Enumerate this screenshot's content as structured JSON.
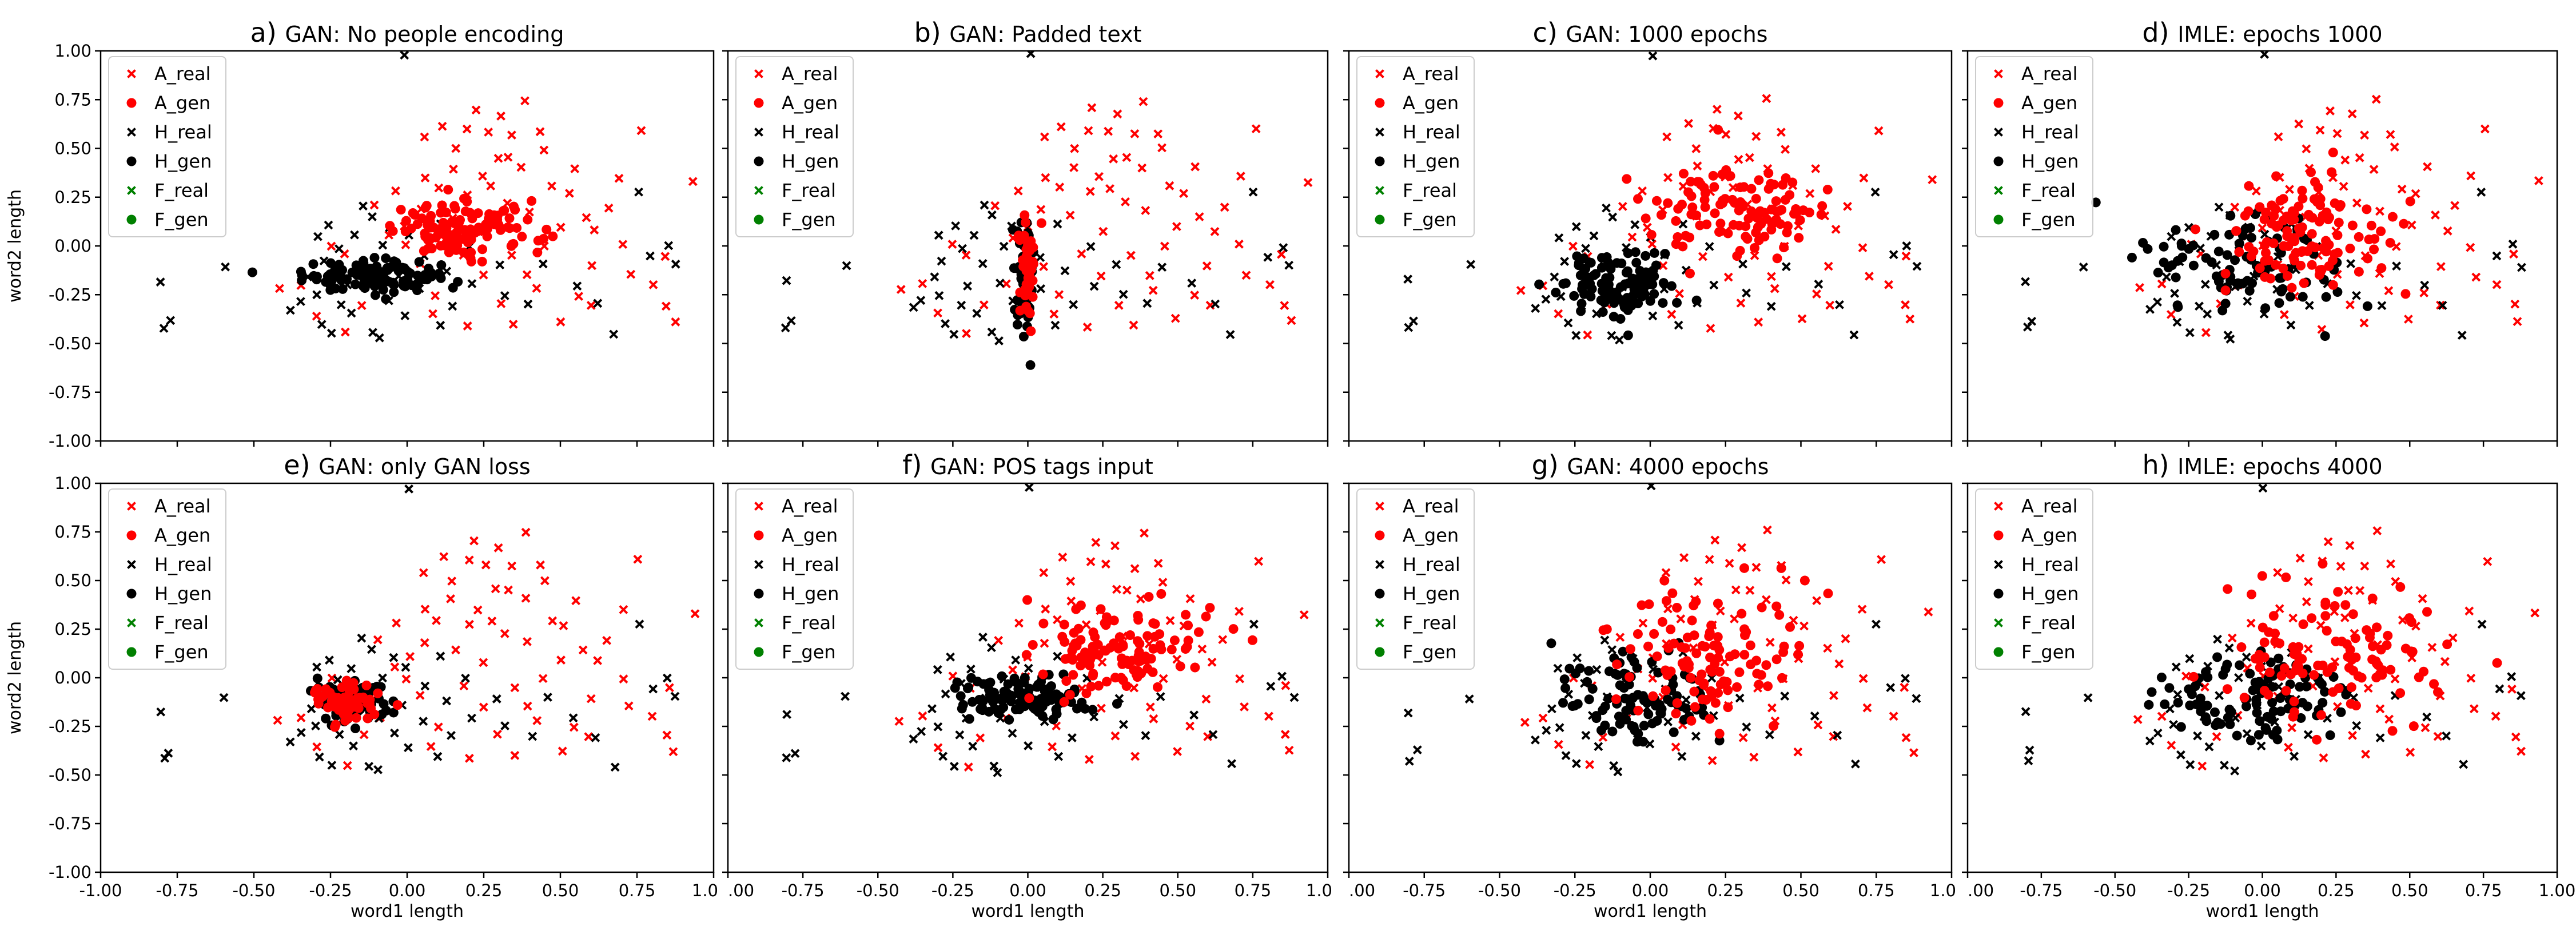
{
  "chart_data": [
    {
      "id": "a",
      "panel_label": "a)",
      "title": "GAN: No people encoding",
      "type": "scatter",
      "xlabel": "",
      "ylabel": "word2 length",
      "xlim": [
        -1.0,
        1.0
      ],
      "ylim": [
        -1.0,
        1.0
      ],
      "legend": [
        "A_real",
        "A_gen",
        "H_real",
        "H_gen",
        "F_real",
        "F_gen"
      ],
      "legend_position": "top-left",
      "series_summary": {
        "A_gen": {
          "center": [
            0.2,
            0.08
          ],
          "spread": [
            0.12,
            0.07
          ],
          "count": 120
        },
        "H_gen": {
          "center": [
            -0.12,
            -0.15
          ],
          "spread": [
            0.11,
            0.04
          ],
          "count": 120
        }
      }
    },
    {
      "id": "b",
      "panel_label": "b)",
      "title": "GAN: Padded text",
      "type": "scatter",
      "xlabel": "",
      "ylabel": "",
      "xlim": [
        -1.0,
        1.0
      ],
      "ylim": [
        -1.0,
        1.0
      ],
      "legend": [
        "A_real",
        "A_gen",
        "H_real",
        "H_gen",
        "F_real",
        "F_gen"
      ],
      "legend_position": "top-left",
      "series_summary": {
        "A_gen": {
          "center": [
            0.0,
            -0.1
          ],
          "spread": [
            0.015,
            0.13
          ],
          "count": 50
        },
        "H_gen": {
          "center": [
            -0.01,
            -0.15
          ],
          "spread": [
            0.015,
            0.13
          ],
          "count": 70
        }
      }
    },
    {
      "id": "c",
      "panel_label": "c)",
      "title": "GAN: 1000 epochs",
      "type": "scatter",
      "xlabel": "",
      "ylabel": "",
      "xlim": [
        -1.0,
        1.0
      ],
      "ylim": [
        -1.0,
        1.0
      ],
      "legend": [
        "A_real",
        "A_gen",
        "H_real",
        "H_gen",
        "F_real",
        "F_gen"
      ],
      "legend_position": "top-left",
      "series_summary": {
        "A_gen": {
          "center": [
            0.3,
            0.18
          ],
          "spread": [
            0.14,
            0.12
          ],
          "count": 110
        },
        "H_gen": {
          "center": [
            -0.1,
            -0.2
          ],
          "spread": [
            0.1,
            0.08
          ],
          "count": 110
        }
      }
    },
    {
      "id": "d",
      "panel_label": "d)",
      "title": "IMLE: epochs 1000",
      "type": "scatter",
      "xlabel": "",
      "ylabel": "",
      "xlim": [
        -1.0,
        1.0
      ],
      "ylim": [
        -1.0,
        1.0
      ],
      "legend": [
        "A_real",
        "A_gen",
        "H_real",
        "H_gen",
        "F_real",
        "F_gen"
      ],
      "legend_position": "top-left",
      "series_summary": {
        "A_gen": {
          "center": [
            0.15,
            0.08
          ],
          "spread": [
            0.16,
            0.15
          ],
          "count": 120
        },
        "H_gen": {
          "center": [
            -0.05,
            -0.1
          ],
          "spread": [
            0.18,
            0.15
          ],
          "count": 90
        }
      }
    },
    {
      "id": "e",
      "panel_label": "e)",
      "title": "GAN: only GAN loss",
      "type": "scatter",
      "xlabel": "word1 length",
      "ylabel": "word2 length",
      "xlim": [
        -1.0,
        1.0
      ],
      "ylim": [
        -1.0,
        1.0
      ],
      "legend": [
        "A_real",
        "A_gen",
        "H_real",
        "H_gen",
        "F_real",
        "F_gen"
      ],
      "legend_position": "top-left",
      "series_summary": {
        "A_gen": {
          "center": [
            -0.2,
            -0.12
          ],
          "spread": [
            0.05,
            0.05
          ],
          "count": 60
        },
        "H_gen": {
          "center": [
            -0.18,
            -0.12
          ],
          "spread": [
            0.05,
            0.05
          ],
          "count": 90
        }
      }
    },
    {
      "id": "f",
      "panel_label": "f)",
      "title": "GAN: POS tags input",
      "type": "scatter",
      "xlabel": "word1 length",
      "ylabel": "",
      "xlim": [
        -1.0,
        1.0
      ],
      "ylim": [
        -1.0,
        1.0
      ],
      "legend": [
        "A_real",
        "A_gen",
        "H_real",
        "H_gen",
        "F_real",
        "F_gen"
      ],
      "legend_position": "top-left",
      "series_summary": {
        "A_gen": {
          "center": [
            0.3,
            0.15
          ],
          "spread": [
            0.15,
            0.12
          ],
          "count": 120
        },
        "H_gen": {
          "center": [
            -0.02,
            -0.1
          ],
          "spread": [
            0.1,
            0.06
          ],
          "count": 110
        }
      }
    },
    {
      "id": "g",
      "panel_label": "g)",
      "title": "GAN: 4000 epochs",
      "type": "scatter",
      "xlabel": "word1 length",
      "ylabel": "",
      "xlim": [
        -1.0,
        1.0
      ],
      "ylim": [
        -1.0,
        1.0
      ],
      "legend": [
        "A_real",
        "A_gen",
        "H_real",
        "H_gen",
        "F_real",
        "F_gen"
      ],
      "legend_position": "top-left",
      "series_summary": {
        "A_gen": {
          "center": [
            0.2,
            0.1
          ],
          "spread": [
            0.15,
            0.18
          ],
          "count": 110
        },
        "H_gen": {
          "center": [
            -0.05,
            -0.1
          ],
          "spread": [
            0.14,
            0.12
          ],
          "count": 100
        }
      }
    },
    {
      "id": "h",
      "panel_label": "h)",
      "title": "IMLE: epochs 4000",
      "type": "scatter",
      "xlabel": "word1 length",
      "ylabel": "",
      "xlim": [
        -1.0,
        1.0
      ],
      "ylim": [
        -1.0,
        1.0
      ],
      "legend": [
        "A_real",
        "A_gen",
        "H_real",
        "H_gen",
        "F_real",
        "F_gen"
      ],
      "legend_position": "top-left",
      "series_summary": {
        "A_gen": {
          "center": [
            0.25,
            0.12
          ],
          "spread": [
            0.18,
            0.18
          ],
          "count": 110
        },
        "H_gen": {
          "center": [
            -0.02,
            -0.1
          ],
          "spread": [
            0.17,
            0.12
          ],
          "count": 100
        }
      }
    }
  ],
  "shared": {
    "x_tick_labels": [
      "-1.00",
      "-0.75",
      "-0.50",
      "-0.25",
      "0.00",
      "0.25",
      "0.50",
      "0.75",
      "1.00"
    ],
    "x_tick_labels_truncated": [
      ".00",
      "-0.75",
      "-0.50",
      "-0.25",
      "0.00",
      "0.25",
      "0.50",
      "0.75",
      "1.0"
    ],
    "y_tick_labels": [
      "1.00",
      "0.75",
      "0.50",
      "0.25",
      "0.00",
      "-0.25",
      "-0.50",
      "-0.75",
      "-1.00"
    ],
    "real_points": [
      [
        0.38,
        0.75
      ],
      [
        0.22,
        0.7
      ],
      [
        0.3,
        0.67
      ],
      [
        0.12,
        0.62
      ],
      [
        0.2,
        0.6
      ],
      [
        0.43,
        0.58
      ],
      [
        0.35,
        0.57
      ],
      [
        0.26,
        0.58
      ],
      [
        0.76,
        0.6
      ],
      [
        0.05,
        0.55
      ],
      [
        0.45,
        0.5
      ],
      [
        0.33,
        0.45
      ],
      [
        0.29,
        0.45
      ],
      [
        0.15,
        0.4
      ],
      [
        0.24,
        0.35
      ],
      [
        0.06,
        0.35
      ],
      [
        0.38,
        0.4
      ],
      [
        0.55,
        0.4
      ],
      [
        0.93,
        0.33
      ],
      [
        0.1,
        0.3
      ],
      [
        0.28,
        0.3
      ],
      [
        -0.03,
        0.28
      ],
      [
        0.2,
        0.27
      ],
      [
        0.52,
        0.26
      ],
      [
        0.32,
        0.22
      ],
      [
        0.4,
        0.18
      ],
      [
        -0.1,
        0.2
      ],
      [
        0.05,
        0.18
      ],
      [
        0.15,
        0.15
      ],
      [
        0.62,
        0.08
      ],
      [
        0.5,
        0.1
      ],
      [
        0.25,
        0.08
      ],
      [
        0.0,
        0.1
      ],
      [
        -0.05,
        0.05
      ],
      [
        0.7,
        0.0
      ],
      [
        0.45,
        0.0
      ],
      [
        0.85,
        -0.05
      ],
      [
        0.6,
        -0.1
      ],
      [
        0.35,
        -0.05
      ],
      [
        0.18,
        -0.05
      ],
      [
        -0.2,
        -0.05
      ],
      [
        0.8,
        -0.2
      ],
      [
        0.55,
        -0.25
      ],
      [
        0.42,
        -0.22
      ],
      [
        0.3,
        -0.3
      ],
      [
        0.1,
        -0.25
      ],
      [
        -0.15,
        -0.3
      ],
      [
        -0.3,
        -0.35
      ],
      [
        0.5,
        -0.38
      ],
      [
        0.87,
        -0.38
      ],
      [
        0.85,
        -0.3
      ],
      [
        -0.2,
        -0.45
      ],
      [
        0.2,
        -0.42
      ],
      [
        0.35,
        -0.4
      ],
      [
        -0.42,
        -0.22
      ],
      [
        0.6,
        -0.3
      ],
      [
        0.25,
        -0.15
      ],
      [
        0.08,
        -0.35
      ],
      [
        -0.35,
        -0.2
      ],
      [
        0.65,
        0.2
      ],
      [
        0.15,
        0.5
      ],
      [
        0.0,
        0.0
      ],
      [
        -0.08,
        -0.2
      ],
      [
        0.48,
        0.3
      ],
      [
        0.7,
        0.35
      ],
      [
        -0.25,
        0.0
      ],
      [
        0.05,
        -0.1
      ],
      [
        0.4,
        -0.15
      ],
      [
        0.72,
        -0.15
      ],
      [
        0.58,
        0.15
      ]
    ],
    "h_real_points": [
      [
        -0.8,
        -0.42
      ],
      [
        -0.78,
        -0.38
      ],
      [
        -0.8,
        -0.18
      ],
      [
        -0.6,
        -0.1
      ],
      [
        -0.35,
        -0.28
      ],
      [
        -0.3,
        -0.25
      ],
      [
        -0.28,
        -0.4
      ],
      [
        -0.25,
        -0.45
      ],
      [
        -0.22,
        -0.3
      ],
      [
        -0.2,
        -0.2
      ],
      [
        -0.18,
        -0.35
      ],
      [
        -0.15,
        -0.1
      ],
      [
        -0.12,
        -0.45
      ],
      [
        -0.1,
        -0.2
      ],
      [
        -0.1,
        -0.48
      ],
      [
        -0.05,
        -0.28
      ],
      [
        0.0,
        -0.35
      ],
      [
        0.05,
        -0.22
      ],
      [
        0.1,
        -0.4
      ],
      [
        0.15,
        -0.3
      ],
      [
        -0.3,
        0.05
      ],
      [
        -0.25,
        0.1
      ],
      [
        -0.22,
        -0.02
      ],
      [
        -0.18,
        0.05
      ],
      [
        -0.12,
        0.15
      ],
      [
        -0.08,
        0.0
      ],
      [
        0.0,
        0.05
      ],
      [
        0.05,
        -0.05
      ],
      [
        0.2,
        0.0
      ],
      [
        0.3,
        -0.1
      ],
      [
        0.4,
        -0.3
      ],
      [
        0.55,
        -0.2
      ],
      [
        0.62,
        -0.3
      ],
      [
        0.75,
        0.28
      ],
      [
        0.8,
        -0.05
      ],
      [
        0.85,
        0.0
      ],
      [
        0.88,
        -0.1
      ],
      [
        -0.32,
        -0.15
      ],
      [
        -0.28,
        -0.08
      ],
      [
        -0.05,
        0.1
      ],
      [
        0.22,
        -0.2
      ],
      [
        0.1,
        0.12
      ],
      [
        -0.15,
        0.2
      ],
      [
        0.45,
        -0.1
      ],
      [
        0.68,
        -0.45
      ],
      [
        -0.38,
        -0.32
      ],
      [
        0.32,
        -0.25
      ],
      [
        0.0,
        0.98
      ],
      [
        -0.02,
        -0.15
      ],
      [
        0.12,
        -0.12
      ]
    ]
  },
  "colors": {
    "red": "#ff0000",
    "black": "#000000",
    "green": "#008000",
    "frame": "#000000"
  }
}
